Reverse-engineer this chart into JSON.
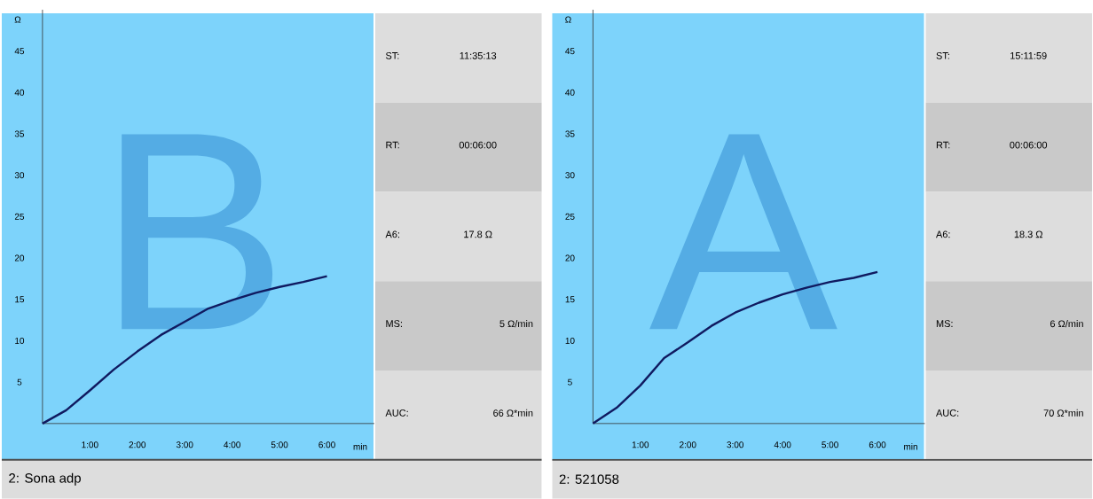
{
  "chart_data": [
    {
      "type": "line",
      "xlabel": "min",
      "ylabel": "Ω",
      "xlim": [
        0,
        7
      ],
      "ylim": [
        0,
        50
      ],
      "xticks": [
        {
          "value": 1,
          "label": "1:00"
        },
        {
          "value": 2,
          "label": "2:00"
        },
        {
          "value": 3,
          "label": "3:00"
        },
        {
          "value": 4,
          "label": "4:00"
        },
        {
          "value": 5,
          "label": "5:00"
        },
        {
          "value": 6,
          "label": "6:00"
        }
      ],
      "yticks": [
        5,
        10,
        15,
        20,
        25,
        30,
        35,
        40,
        45
      ],
      "grid": false,
      "x": [
        0,
        0.5,
        1.0,
        1.5,
        2.0,
        2.5,
        3.0,
        3.5,
        4.0,
        4.5,
        5.0,
        5.5,
        6.0
      ],
      "series": [
        {
          "color": "#101a60",
          "values": [
            0,
            1.6,
            4.0,
            6.5,
            8.7,
            10.7,
            12.3,
            13.9,
            14.9,
            15.8,
            16.5,
            17.1,
            17.8
          ]
        }
      ],
      "annotations": [
        "B",
        "ST:",
        "11:35:13",
        "RT:",
        "00:06:00",
        "A6:",
        "17.8 Ω",
        "MS:",
        "5 Ω/min",
        "AUC:",
        "66 Ω*min",
        "2: Sona adp"
      ]
    },
    {
      "type": "line",
      "xlabel": "min",
      "ylabel": "Ω",
      "xlim": [
        0,
        7
      ],
      "ylim": [
        0,
        50
      ],
      "xticks": [
        {
          "value": 1,
          "label": "1:00"
        },
        {
          "value": 2,
          "label": "2:00"
        },
        {
          "value": 3,
          "label": "3:00"
        },
        {
          "value": 4,
          "label": "4:00"
        },
        {
          "value": 5,
          "label": "5:00"
        },
        {
          "value": 6,
          "label": "6:00"
        }
      ],
      "yticks": [
        5,
        10,
        15,
        20,
        25,
        30,
        35,
        40,
        45
      ],
      "grid": false,
      "x": [
        0,
        0.5,
        1.0,
        1.5,
        2.0,
        2.5,
        3.0,
        3.5,
        4.0,
        4.5,
        5.0,
        5.5,
        6.0
      ],
      "series": [
        {
          "color": "#101a60",
          "values": [
            0,
            1.9,
            4.6,
            7.9,
            9.8,
            11.8,
            13.4,
            14.6,
            15.6,
            16.4,
            17.1,
            17.6,
            18.3
          ]
        }
      ],
      "annotations": [
        "A",
        "ST:",
        "15:11:59",
        "RT:",
        "00:06:00",
        "A6:",
        "18.3 Ω",
        "MS:",
        "6 Ω/min",
        "AUC:",
        "70 Ω*min",
        "2: 521058"
      ]
    }
  ]
}
